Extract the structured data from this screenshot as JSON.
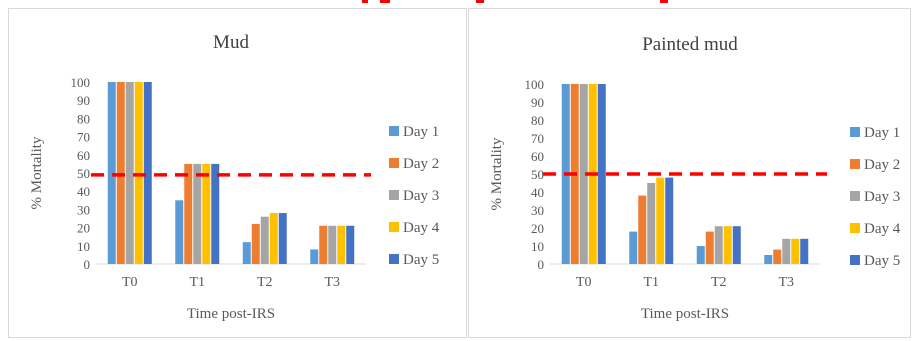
{
  "chart_data": [
    {
      "type": "bar",
      "title": "Mud",
      "xlabel": "Time post-IRS",
      "ylabel": "% Mortality",
      "categories": [
        "T0",
        "T1",
        "T2",
        "T3"
      ],
      "ylim": [
        0,
        100
      ],
      "yticks": [
        0,
        10,
        20,
        30,
        40,
        50,
        60,
        70,
        80,
        90,
        100
      ],
      "series": [
        {
          "name": "Day 1",
          "color": "#5b9bd5",
          "values": [
            100,
            35,
            12,
            8
          ]
        },
        {
          "name": "Day 2",
          "color": "#ed7d31",
          "values": [
            100,
            55,
            22,
            21
          ]
        },
        {
          "name": "Day 3",
          "color": "#a5a5a5",
          "values": [
            100,
            55,
            26,
            21
          ]
        },
        {
          "name": "Day 4",
          "color": "#ffc000",
          "values": [
            100,
            55,
            28,
            21
          ]
        },
        {
          "name": "Day 5",
          "color": "#4472c4",
          "values": [
            100,
            55,
            28,
            21
          ]
        }
      ],
      "threshold": {
        "value": 49,
        "color": "#ff0000",
        "style": "dashed"
      },
      "legend": "right",
      "grid": false
    },
    {
      "type": "bar",
      "title": "Painted mud",
      "xlabel": "Time post-IRS",
      "ylabel": "% Mortality",
      "categories": [
        "T0",
        "T1",
        "T2",
        "T3"
      ],
      "ylim": [
        0,
        100
      ],
      "yticks": [
        0,
        10,
        20,
        30,
        40,
        50,
        60,
        70,
        80,
        90,
        100
      ],
      "series": [
        {
          "name": "Day 1",
          "color": "#5b9bd5",
          "values": [
            100,
            18,
            10,
            5
          ]
        },
        {
          "name": "Day 2",
          "color": "#ed7d31",
          "values": [
            100,
            38,
            18,
            8
          ]
        },
        {
          "name": "Day 3",
          "color": "#a5a5a5",
          "values": [
            100,
            45,
            21,
            14
          ]
        },
        {
          "name": "Day 4",
          "color": "#ffc000",
          "values": [
            100,
            48,
            21,
            14
          ]
        },
        {
          "name": "Day 5",
          "color": "#4472c4",
          "values": [
            100,
            48,
            21,
            14
          ]
        }
      ],
      "threshold": {
        "value": 50,
        "color": "#ff0000",
        "style": "dashed"
      },
      "legend": "right",
      "grid": false
    }
  ]
}
